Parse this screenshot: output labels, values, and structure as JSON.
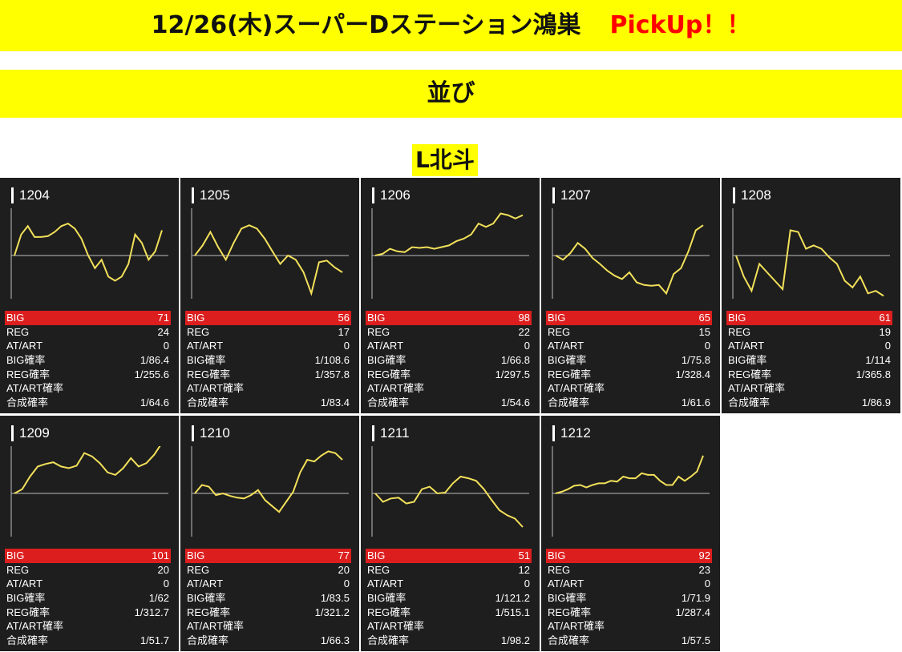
{
  "header": {
    "title": "12/26(木)スーパーDステーション鴻巣",
    "pickup": "PickUp！！",
    "subtitle": "並び",
    "machine": "L北斗"
  },
  "labels": {
    "big": "BIG",
    "reg": "REG",
    "atart": "AT/ART",
    "big_rate": "BIG確率",
    "reg_rate": "REG確率",
    "atart_rate": "AT/ART確率",
    "total_rate": "合成確率"
  },
  "colors": {
    "line": "#f2e05a",
    "big_bar": "#dd1e1e",
    "card_bg": "#1e1e1e",
    "banner": "#ffff00",
    "pickup": "#ff0000"
  },
  "machines": [
    {
      "id": "1204",
      "big": "71",
      "reg": "24",
      "atart": "0",
      "big_rate": "1/86.4",
      "reg_rate": "1/255.6",
      "atart_rate": "",
      "total_rate": "1/64.6",
      "graph": [
        0,
        25,
        35,
        22,
        22,
        23,
        28,
        35,
        38,
        32,
        20,
        0,
        -15,
        -5,
        -25,
        -30,
        -25,
        -10,
        25,
        15,
        -5,
        5,
        30
      ]
    },
    {
      "id": "1205",
      "big": "56",
      "reg": "17",
      "atart": "0",
      "big_rate": "1/108.6",
      "reg_rate": "1/357.8",
      "atart_rate": "",
      "total_rate": "1/83.4",
      "graph": [
        0,
        12,
        28,
        10,
        -5,
        15,
        32,
        36,
        32,
        20,
        5,
        -10,
        0,
        -5,
        -20,
        -45,
        -8,
        -6,
        -14,
        -20
      ]
    },
    {
      "id": "1206",
      "big": "98",
      "reg": "22",
      "atart": "0",
      "big_rate": "1/66.8",
      "reg_rate": "1/297.5",
      "atart_rate": "",
      "total_rate": "1/54.6",
      "graph": [
        0,
        2,
        8,
        5,
        4,
        10,
        9,
        10,
        8,
        10,
        12,
        17,
        20,
        25,
        38,
        34,
        38,
        50,
        48,
        44,
        48
      ]
    },
    {
      "id": "1207",
      "big": "65",
      "reg": "15",
      "atart": "0",
      "big_rate": "1/75.8",
      "reg_rate": "1/328.4",
      "atart_rate": "",
      "total_rate": "1/61.6",
      "graph": [
        0,
        -5,
        3,
        15,
        8,
        -3,
        -10,
        -18,
        -24,
        -28,
        -20,
        -32,
        -35,
        -36,
        -35,
        -45,
        -22,
        -15,
        5,
        30,
        36
      ]
    },
    {
      "id": "1208",
      "big": "61",
      "reg": "19",
      "atart": "0",
      "big_rate": "1/114",
      "reg_rate": "1/365.8",
      "atart_rate": "",
      "total_rate": "1/86.9",
      "graph": [
        0,
        -25,
        -42,
        -10,
        -20,
        -30,
        -40,
        30,
        28,
        8,
        12,
        8,
        -2,
        -10,
        -30,
        -38,
        -25,
        -45,
        -42,
        -48
      ]
    },
    {
      "id": "1209",
      "big": "101",
      "reg": "20",
      "atart": "0",
      "big_rate": "1/62",
      "reg_rate": "1/312.7",
      "atart_rate": "",
      "total_rate": "1/51.7",
      "graph": [
        0,
        5,
        20,
        32,
        35,
        37,
        32,
        30,
        33,
        48,
        44,
        36,
        25,
        22,
        30,
        42,
        32,
        36,
        46,
        60
      ]
    },
    {
      "id": "1210",
      "big": "77",
      "reg": "20",
      "atart": "0",
      "big_rate": "1/83.5",
      "reg_rate": "1/321.2",
      "atart_rate": "",
      "total_rate": "1/66.3",
      "graph": [
        0,
        10,
        8,
        -2,
        0,
        -3,
        -5,
        -6,
        -2,
        4,
        -8,
        -15,
        -22,
        -10,
        2,
        25,
        40,
        38,
        45,
        50,
        48,
        40
      ]
    },
    {
      "id": "1211",
      "big": "51",
      "reg": "12",
      "atart": "0",
      "big_rate": "1/121.2",
      "reg_rate": "1/515.1",
      "atart_rate": "",
      "total_rate": "1/98.2",
      "graph": [
        0,
        -10,
        -6,
        -5,
        -12,
        -10,
        5,
        8,
        0,
        1,
        12,
        20,
        18,
        15,
        5,
        -8,
        -20,
        -26,
        -30,
        -40
      ]
    },
    {
      "id": "1212",
      "big": "92",
      "reg": "23",
      "atart": "0",
      "big_rate": "1/71.9",
      "reg_rate": "1/287.4",
      "atart_rate": "",
      "total_rate": "1/57.5",
      "graph": [
        0,
        2,
        5,
        9,
        10,
        7,
        10,
        12,
        12,
        15,
        14,
        20,
        18,
        18,
        24,
        22,
        22,
        15,
        10,
        10,
        20,
        15,
        20,
        26,
        45
      ]
    }
  ]
}
